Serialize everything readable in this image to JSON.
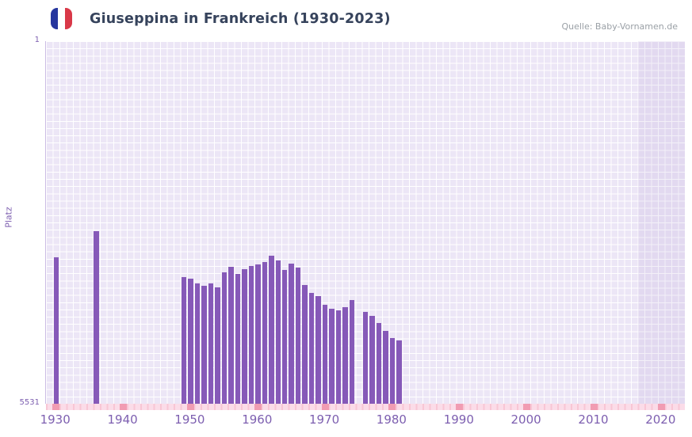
{
  "header": {
    "title": "Giuseppina in Frankreich (1930-2023)",
    "source": "Quelle: Baby-Vornamen.de"
  },
  "axis": {
    "y_title": "Platz",
    "y_top": "1",
    "y_bottom": "5531"
  },
  "colors": {
    "bar": "#8659b8",
    "plot_bg": "#ece6f6",
    "recent_band": "rgba(137,108,190,0.10)",
    "baseline_strip": "#fbdce8",
    "decade_tick": "#f19cb2",
    "axis_text": "#7d5fb0",
    "title_text": "#36435c",
    "source_text": "#9aa0a6",
    "flag_blue": "#26369e",
    "flag_red": "#d93848"
  },
  "chart_data": {
    "type": "bar",
    "title": "Giuseppina in Frankreich (1930-2023)",
    "xlabel": "",
    "ylabel": "Platz",
    "y_axis_inverted": true,
    "ylim": [
      1,
      5531
    ],
    "xlim": [
      1928.5,
      2023.5
    ],
    "x_ticks": [
      1930,
      1940,
      1950,
      1960,
      1970,
      1980,
      1990,
      2000,
      2010,
      2020
    ],
    "y_tick_labels": [
      "1",
      "5531"
    ],
    "recent_band_years": [
      2016.5,
      2023.5
    ],
    "grid": true,
    "legend": false,
    "points": [
      {
        "year": 1930,
        "rank": 3300
      },
      {
        "year": 1936,
        "rank": 2900
      },
      {
        "year": 1949,
        "rank": 3600
      },
      {
        "year": 1950,
        "rank": 3620
      },
      {
        "year": 1951,
        "rank": 3690
      },
      {
        "year": 1952,
        "rank": 3730
      },
      {
        "year": 1953,
        "rank": 3700
      },
      {
        "year": 1954,
        "rank": 3750
      },
      {
        "year": 1955,
        "rank": 3530
      },
      {
        "year": 1956,
        "rank": 3440
      },
      {
        "year": 1957,
        "rank": 3550
      },
      {
        "year": 1958,
        "rank": 3480
      },
      {
        "year": 1959,
        "rank": 3430
      },
      {
        "year": 1960,
        "rank": 3400
      },
      {
        "year": 1961,
        "rank": 3370
      },
      {
        "year": 1962,
        "rank": 3270
      },
      {
        "year": 1963,
        "rank": 3350
      },
      {
        "year": 1964,
        "rank": 3490
      },
      {
        "year": 1965,
        "rank": 3390
      },
      {
        "year": 1966,
        "rank": 3450
      },
      {
        "year": 1967,
        "rank": 3720
      },
      {
        "year": 1968,
        "rank": 3840
      },
      {
        "year": 1969,
        "rank": 3890
      },
      {
        "year": 1970,
        "rank": 4020
      },
      {
        "year": 1971,
        "rank": 4080
      },
      {
        "year": 1972,
        "rank": 4110
      },
      {
        "year": 1973,
        "rank": 4060
      },
      {
        "year": 1974,
        "rank": 3950
      },
      {
        "year": 1976,
        "rank": 4130
      },
      {
        "year": 1977,
        "rank": 4190
      },
      {
        "year": 1978,
        "rank": 4300
      },
      {
        "year": 1979,
        "rank": 4420
      },
      {
        "year": 1980,
        "rank": 4530
      },
      {
        "year": 1981,
        "rank": 4560
      }
    ]
  }
}
